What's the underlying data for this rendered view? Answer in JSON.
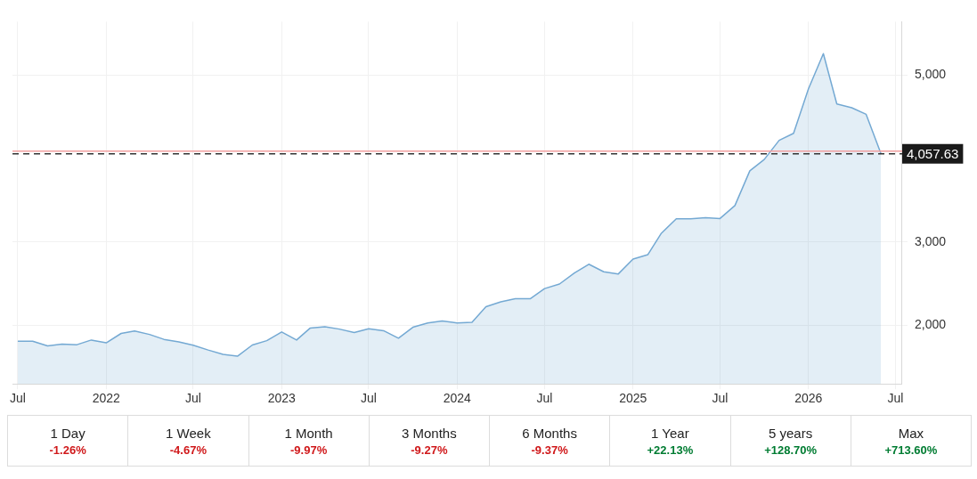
{
  "chart_data": [
    {
      "type": "area",
      "color": "#74a9d3",
      "x": [
        "2021-07",
        "2021-08",
        "2021-09",
        "2021-10",
        "2021-11",
        "2021-12",
        "2022-01",
        "2022-02",
        "2022-03",
        "2022-04",
        "2022-05",
        "2022-06",
        "2022-07",
        "2022-08",
        "2022-09",
        "2022-10",
        "2022-11",
        "2022-12",
        "2023-01",
        "2023-02",
        "2023-03",
        "2023-04",
        "2023-05",
        "2023-06",
        "2023-07",
        "2023-08",
        "2023-09",
        "2023-10",
        "2023-11",
        "2023-12",
        "2024-01",
        "2024-02",
        "2024-03",
        "2024-04",
        "2024-05",
        "2024-06",
        "2024-07",
        "2024-08",
        "2024-09",
        "2024-10",
        "2024-11",
        "2024-12",
        "2025-01",
        "2025-02",
        "2025-03",
        "2025-04",
        "2025-05",
        "2025-06",
        "2025-07",
        "2025-08",
        "2025-09",
        "2025-10",
        "2025-11",
        "2025-12",
        "2026-01",
        "2026-02",
        "2026-03",
        "2026-04",
        "2026-05",
        "2026-06"
      ],
      "values": [
        1812,
        1812,
        1755,
        1777,
        1770,
        1826,
        1792,
        1905,
        1934,
        1893,
        1834,
        1804,
        1763,
        1706,
        1654,
        1632,
        1766,
        1818,
        1923,
        1826,
        1968,
        1986,
        1957,
        1915,
        1960,
        1938,
        1848,
        1979,
        2031,
        2055,
        2031,
        2039,
        2225,
        2283,
        2320,
        2320,
        2442,
        2497,
        2629,
        2734,
        2644,
        2616,
        2795,
        2850,
        3106,
        3278,
        3278,
        3293,
        3282,
        3437,
        3853,
        3989,
        4219,
        4303,
        4836,
        5258,
        4655,
        4610,
        4530,
        4058
      ],
      "xlim": [
        "2021-06-20",
        "2026-07-15"
      ],
      "xticks": [
        {
          "value": "2021-07",
          "label": "Jul"
        },
        {
          "value": "2022",
          "label": "2022"
        },
        {
          "value": "2022-07",
          "label": "Jul"
        },
        {
          "value": "2023",
          "label": "2023"
        },
        {
          "value": "2023-07",
          "label": "Jul"
        },
        {
          "value": "2024",
          "label": "2024"
        },
        {
          "value": "2024-07",
          "label": "Jul"
        },
        {
          "value": "2025",
          "label": "2025"
        },
        {
          "value": "2025-07",
          "label": "Jul"
        },
        {
          "value": "2026",
          "label": "2026"
        },
        {
          "value": "2026-07",
          "label": "Jul"
        }
      ],
      "ylim": [
        1300,
        5640
      ],
      "yticks": [
        {
          "value": 2000,
          "label": "2,000"
        },
        {
          "value": 3000,
          "label": "3,000"
        },
        {
          "value": 5000,
          "label": "5,000"
        }
      ],
      "grid": true,
      "ref_lines": [
        {
          "axis": "y",
          "value": 4090,
          "color": "#f2a0a0",
          "line_style": "solid"
        },
        {
          "axis": "y",
          "value": 4057.63,
          "label": "4,057.63",
          "color": "#333333",
          "line_style": "dashed"
        }
      ]
    },
    {
      "type": "other",
      "categories": [
        "1 Day",
        "1 Week",
        "1 Month",
        "3 Months",
        "6 Months",
        "1 Year",
        "5 years",
        "Max"
      ],
      "value_labels": [
        "-1.26%",
        "-4.67%",
        "-9.97%",
        "-9.27%",
        "-9.37%",
        "+22.13%",
        "+128.70%",
        "+713.60%"
      ],
      "colors": [
        "#d0191b",
        "#d0191b",
        "#d0191b",
        "#d0191b",
        "#d0191b",
        "#007c32",
        "#007c32",
        "#007c32"
      ]
    }
  ]
}
